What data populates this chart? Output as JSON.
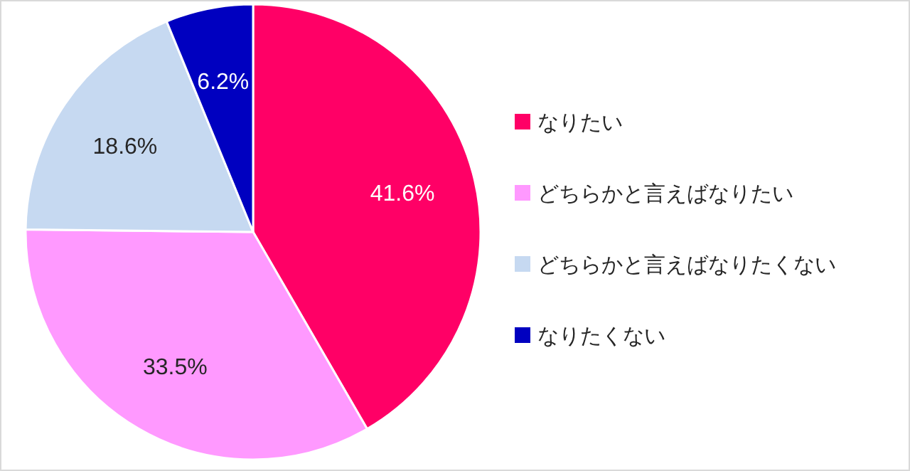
{
  "chart_data": {
    "type": "pie",
    "categories": [
      "なりたい",
      "どちらかと言えばなりたい",
      "どちらかと言えばなりたくない",
      "なりたくない"
    ],
    "values": [
      41.6,
      33.5,
      18.6,
      6.2
    ],
    "value_labels": [
      "41.6%",
      "33.5%",
      "18.6%",
      "6.2%"
    ],
    "colors": [
      "#ff0066",
      "#ff99ff",
      "#c6d9f1",
      "#0000c0"
    ],
    "legend": "right"
  }
}
